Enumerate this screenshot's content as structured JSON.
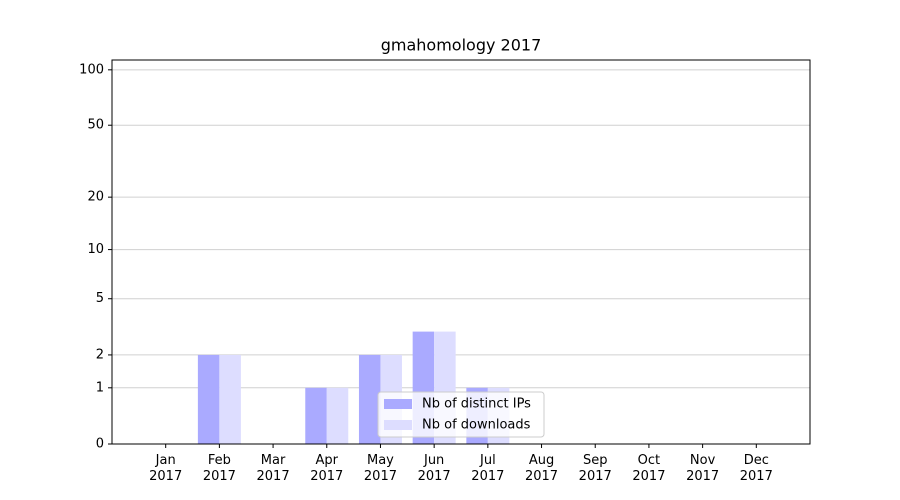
{
  "chart_data": {
    "type": "bar",
    "title": "gmahomology 2017",
    "categories": [
      "Jan\n2017",
      "Feb\n2017",
      "Mar\n2017",
      "Apr\n2017",
      "May\n2017",
      "Jun\n2017",
      "Jul\n2017",
      "Aug\n2017",
      "Sep\n2017",
      "Oct\n2017",
      "Nov\n2017",
      "Dec\n2017"
    ],
    "series": [
      {
        "name": "Nb of distinct IPs",
        "color": "#aaaaff",
        "values": [
          0,
          2,
          0,
          1,
          2,
          3,
          1,
          0,
          0,
          0,
          0,
          0
        ]
      },
      {
        "name": "Nb of downloads",
        "color": "#ddddff",
        "values": [
          0,
          2,
          0,
          1,
          2,
          3,
          1,
          0,
          0,
          0,
          0,
          0
        ]
      }
    ],
    "yscale": "log1p",
    "ylim": [
      0,
      113
    ],
    "yticks": [
      0,
      1,
      2,
      5,
      10,
      20,
      50,
      100
    ],
    "grid": true,
    "legend": "lower center"
  }
}
